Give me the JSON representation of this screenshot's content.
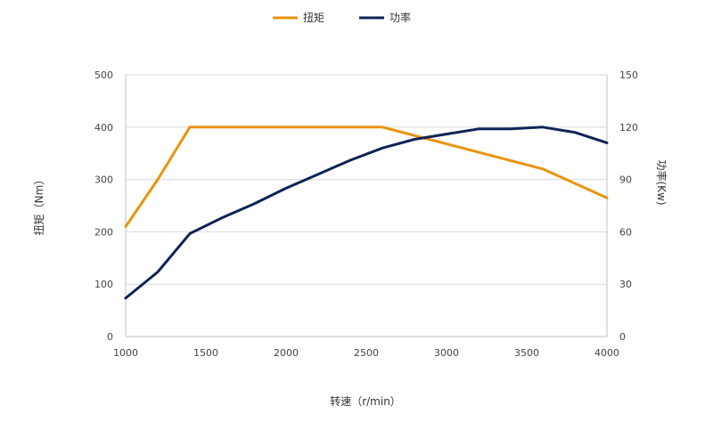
{
  "chart_data": {
    "type": "line",
    "xlabel": "转速（r/min）",
    "ylabel_left": "扭矩（Nm）",
    "ylabel_right": "功率(Kw)",
    "xlim": [
      1000,
      4000
    ],
    "ylim_left": [
      0,
      500
    ],
    "ylim_right": [
      0,
      150
    ],
    "x_ticks": [
      1000,
      1500,
      2000,
      2500,
      3000,
      3500,
      4000
    ],
    "y_ticks_left": [
      0,
      100,
      200,
      300,
      400,
      500
    ],
    "y_ticks_right": [
      0,
      30,
      60,
      90,
      120,
      150
    ],
    "grid": "horizontal",
    "legend_position": "top-center",
    "series": [
      {
        "name": "扭矩",
        "axis": "left",
        "color": "#E8940F",
        "x": [
          1000,
          1200,
          1400,
          2600,
          3600,
          4000
        ],
        "values": [
          210,
          300,
          400,
          400,
          320,
          265
        ]
      },
      {
        "name": "功率",
        "axis": "right",
        "color": "#0F2356",
        "x": [
          1000,
          1200,
          1400,
          1600,
          1800,
          2000,
          2200,
          2400,
          2600,
          2800,
          3000,
          3200,
          3400,
          3600,
          3800,
          4000
        ],
        "values": [
          22,
          37,
          59,
          68,
          76,
          85,
          93,
          101,
          108,
          113,
          116,
          119,
          119,
          120,
          117,
          111
        ]
      }
    ]
  }
}
